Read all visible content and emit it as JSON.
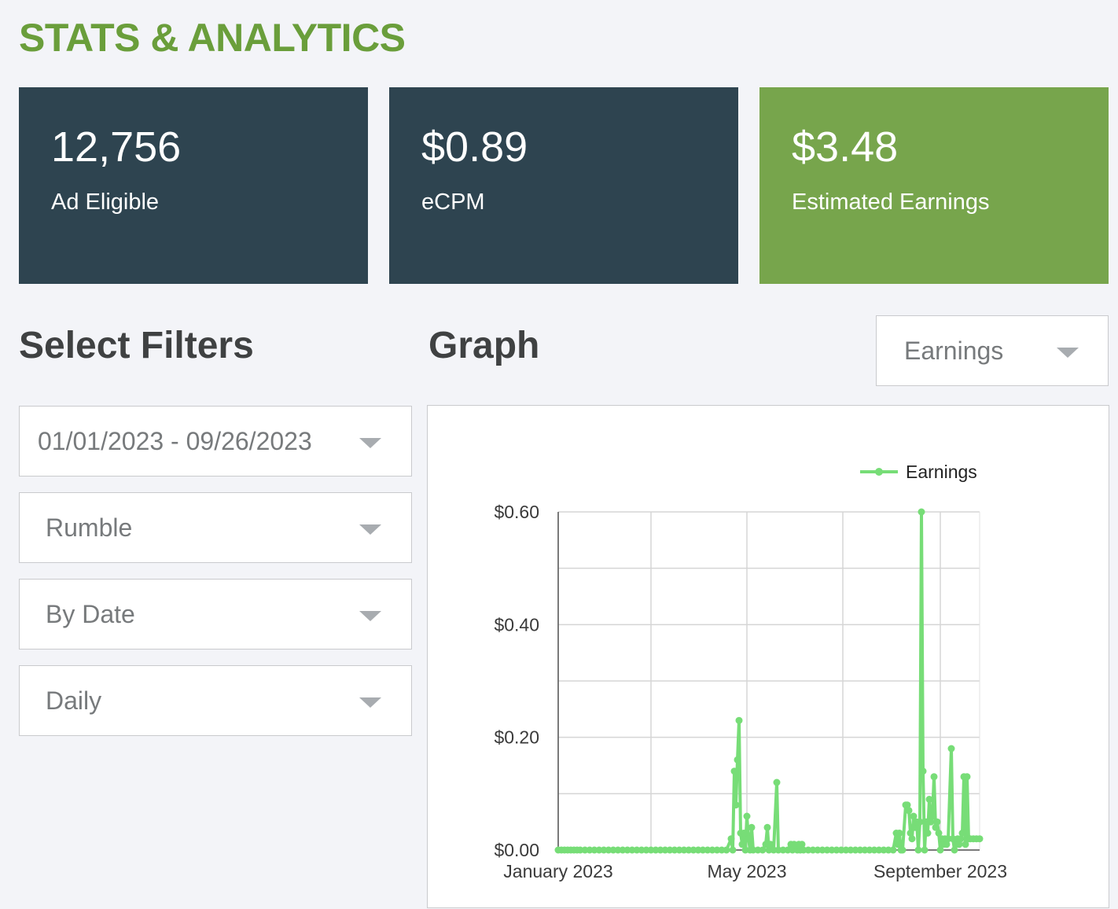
{
  "page": {
    "title": "STATS & ANALYTICS",
    "title_color": "#6a9e3b"
  },
  "stats": [
    {
      "value": "12,756",
      "label": "Ad Eligible",
      "color": "#2e4450"
    },
    {
      "value": "$0.89",
      "label": "eCPM",
      "color": "#2e4450"
    },
    {
      "value": "$3.48",
      "label": "Estimated Earnings",
      "color": "#77a54c"
    }
  ],
  "filters": {
    "heading": "Select Filters",
    "date_range": "01/01/2023 - 09/26/2023",
    "platform": "Rumble",
    "group_by": "By Date",
    "interval": "Daily"
  },
  "graph": {
    "heading": "Graph",
    "metric_select": "Earnings"
  },
  "chart_data": {
    "type": "line",
    "title": "",
    "xlabel": "",
    "ylabel": "",
    "ylim": [
      0,
      0.6
    ],
    "y_ticks": [
      "$0.00",
      "$0.20",
      "$0.40",
      "$0.60"
    ],
    "x_ticks": [
      "January 2023",
      "May 2023",
      "September 2023"
    ],
    "x_range": [
      "2023-01-01",
      "2023-09-26"
    ],
    "grid": true,
    "legend_position": "top-right",
    "line_color": "#77dd77",
    "series": [
      {
        "name": "Earnings",
        "points": [
          [
            "2023-01-01",
            0
          ],
          [
            "2023-01-03",
            0
          ],
          [
            "2023-01-05",
            0
          ],
          [
            "2023-01-07",
            0
          ],
          [
            "2023-01-09",
            0
          ],
          [
            "2023-01-11",
            0
          ],
          [
            "2023-01-13",
            0
          ],
          [
            "2023-01-15",
            0
          ],
          [
            "2023-01-18",
            0
          ],
          [
            "2023-01-21",
            0
          ],
          [
            "2023-01-24",
            0
          ],
          [
            "2023-01-27",
            0
          ],
          [
            "2023-01-30",
            0
          ],
          [
            "2023-02-02",
            0
          ],
          [
            "2023-02-05",
            0
          ],
          [
            "2023-02-08",
            0
          ],
          [
            "2023-02-11",
            0
          ],
          [
            "2023-02-14",
            0
          ],
          [
            "2023-02-17",
            0
          ],
          [
            "2023-02-20",
            0
          ],
          [
            "2023-02-23",
            0
          ],
          [
            "2023-02-26",
            0
          ],
          [
            "2023-03-01",
            0
          ],
          [
            "2023-03-04",
            0
          ],
          [
            "2023-03-07",
            0
          ],
          [
            "2023-03-10",
            0
          ],
          [
            "2023-03-13",
            0
          ],
          [
            "2023-03-16",
            0
          ],
          [
            "2023-03-19",
            0
          ],
          [
            "2023-03-22",
            0
          ],
          [
            "2023-03-25",
            0
          ],
          [
            "2023-03-28",
            0
          ],
          [
            "2023-03-31",
            0
          ],
          [
            "2023-04-03",
            0
          ],
          [
            "2023-04-06",
            0
          ],
          [
            "2023-04-09",
            0
          ],
          [
            "2023-04-12",
            0
          ],
          [
            "2023-04-15",
            0
          ],
          [
            "2023-04-18",
            0
          ],
          [
            "2023-04-21",
            0.02
          ],
          [
            "2023-04-22",
            0
          ],
          [
            "2023-04-23",
            0.14
          ],
          [
            "2023-04-24",
            0.08
          ],
          [
            "2023-04-25",
            0.16
          ],
          [
            "2023-04-26",
            0.23
          ],
          [
            "2023-04-27",
            0.03
          ],
          [
            "2023-04-28",
            0.01
          ],
          [
            "2023-04-29",
            0.03
          ],
          [
            "2023-04-30",
            0
          ],
          [
            "2023-05-01",
            0.06
          ],
          [
            "2023-05-02",
            0.02
          ],
          [
            "2023-05-03",
            0
          ],
          [
            "2023-05-04",
            0.04
          ],
          [
            "2023-05-05",
            0
          ],
          [
            "2023-05-08",
            0
          ],
          [
            "2023-05-11",
            0
          ],
          [
            "2023-05-13",
            0.01
          ],
          [
            "2023-05-14",
            0.04
          ],
          [
            "2023-05-15",
            0
          ],
          [
            "2023-05-16",
            0.01
          ],
          [
            "2023-05-18",
            0
          ],
          [
            "2023-05-20",
            0.12
          ],
          [
            "2023-05-21",
            0
          ],
          [
            "2023-05-24",
            0
          ],
          [
            "2023-05-27",
            0
          ],
          [
            "2023-05-29",
            0.01
          ],
          [
            "2023-05-30",
            0
          ],
          [
            "2023-05-31",
            0.01
          ],
          [
            "2023-06-02",
            0
          ],
          [
            "2023-06-03",
            0.01
          ],
          [
            "2023-06-04",
            0
          ],
          [
            "2023-06-05",
            0.01
          ],
          [
            "2023-06-06",
            0
          ],
          [
            "2023-06-09",
            0
          ],
          [
            "2023-06-12",
            0
          ],
          [
            "2023-06-15",
            0
          ],
          [
            "2023-06-18",
            0
          ],
          [
            "2023-06-21",
            0
          ],
          [
            "2023-06-24",
            0
          ],
          [
            "2023-06-27",
            0
          ],
          [
            "2023-06-30",
            0
          ],
          [
            "2023-07-03",
            0
          ],
          [
            "2023-07-06",
            0
          ],
          [
            "2023-07-09",
            0
          ],
          [
            "2023-07-12",
            0
          ],
          [
            "2023-07-15",
            0
          ],
          [
            "2023-07-18",
            0
          ],
          [
            "2023-07-21",
            0
          ],
          [
            "2023-07-24",
            0
          ],
          [
            "2023-07-27",
            0
          ],
          [
            "2023-07-30",
            0
          ],
          [
            "2023-08-02",
            0
          ],
          [
            "2023-08-04",
            0.03
          ],
          [
            "2023-08-05",
            0.01
          ],
          [
            "2023-08-06",
            0.03
          ],
          [
            "2023-08-07",
            0
          ],
          [
            "2023-08-08",
            0
          ],
          [
            "2023-08-10",
            0.08
          ],
          [
            "2023-08-11",
            0.08
          ],
          [
            "2023-08-12",
            0.07
          ],
          [
            "2023-08-13",
            0.03
          ],
          [
            "2023-08-14",
            0.02
          ],
          [
            "2023-08-15",
            0.06
          ],
          [
            "2023-08-16",
            0.04
          ],
          [
            "2023-08-17",
            0.05
          ],
          [
            "2023-08-18",
            0
          ],
          [
            "2023-08-19",
            0.05
          ],
          [
            "2023-08-20",
            0.6
          ],
          [
            "2023-08-21",
            0.14
          ],
          [
            "2023-08-22",
            0
          ],
          [
            "2023-08-23",
            0.05
          ],
          [
            "2023-08-24",
            0.03
          ],
          [
            "2023-08-25",
            0.09
          ],
          [
            "2023-08-26",
            0.05
          ],
          [
            "2023-08-27",
            0.06
          ],
          [
            "2023-08-28",
            0.13
          ],
          [
            "2023-08-29",
            0.04
          ],
          [
            "2023-08-30",
            0.05
          ],
          [
            "2023-08-31",
            0.03
          ],
          [
            "2023-09-01",
            0
          ],
          [
            "2023-09-02",
            0.02
          ],
          [
            "2023-09-03",
            0.01
          ],
          [
            "2023-09-04",
            0.02
          ],
          [
            "2023-09-05",
            0.01
          ],
          [
            "2023-09-06",
            0.02
          ],
          [
            "2023-09-08",
            0.18
          ],
          [
            "2023-09-09",
            0.02
          ],
          [
            "2023-09-10",
            0
          ],
          [
            "2023-09-11",
            0.01
          ],
          [
            "2023-09-12",
            0.02
          ],
          [
            "2023-09-13",
            0.01
          ],
          [
            "2023-09-14",
            0.02
          ],
          [
            "2023-09-15",
            0.03
          ],
          [
            "2023-09-16",
            0.13
          ],
          [
            "2023-09-17",
            0.01
          ],
          [
            "2023-09-18",
            0.13
          ],
          [
            "2023-09-19",
            0.02
          ],
          [
            "2023-09-20",
            0.02
          ],
          [
            "2023-09-22",
            0.02
          ],
          [
            "2023-09-24",
            0.02
          ],
          [
            "2023-09-26",
            0.02
          ]
        ]
      }
    ]
  }
}
